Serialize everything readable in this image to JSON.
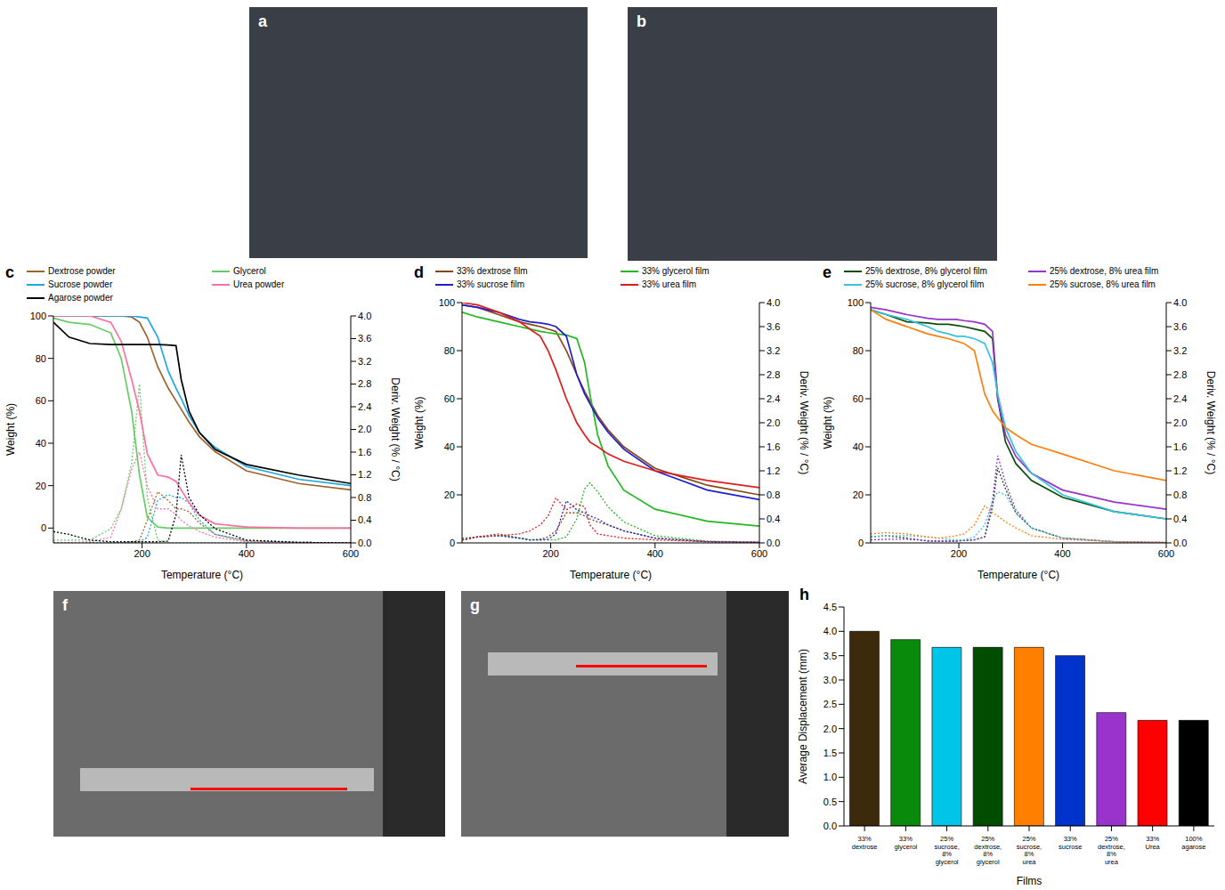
{
  "chart_data": [
    {
      "type": "image",
      "panel": "a"
    },
    {
      "type": "image",
      "panel": "b"
    },
    {
      "type": "line",
      "panel": "c",
      "legend": "top",
      "xlabel": "Temperature (°C)",
      "ylabel": "Weight (%)",
      "y2label": "Deriv. Weight (% / °C)",
      "x": [
        30,
        60,
        100,
        140,
        160,
        180,
        195,
        210,
        230,
        250,
        265,
        275,
        290,
        310,
        340,
        400,
        500,
        600
      ],
      "xlim": [
        30,
        600
      ],
      "xticks": [
        200,
        400,
        600
      ],
      "ylim": [
        -7,
        100
      ],
      "yticks": [
        0,
        20,
        40,
        60,
        80,
        100
      ],
      "y2lim": [
        0,
        4
      ],
      "y2ticks": [
        {
          "value": 0,
          "label": "0.0"
        },
        0.4,
        0.8,
        1.2,
        1.6,
        {
          "value": 2,
          "label": "2.0"
        },
        2.4,
        2.8,
        3.2,
        3.6,
        {
          "value": 4,
          "label": "4.0"
        }
      ],
      "series": [
        {
          "name": "Dextrose powder",
          "color": "#a0622d",
          "line_style": "solid",
          "values": [
            100,
            100,
            100,
            100,
            100,
            99.5,
            97,
            90,
            76,
            66,
            60,
            56,
            50,
            43,
            36,
            27,
            21,
            18
          ]
        },
        {
          "color": "#a0622d",
          "axis": "y2",
          "line_style": "dotted",
          "values": [
            0,
            0,
            0,
            0,
            0,
            0.02,
            0.05,
            0.4,
            0.9,
            0.75,
            0.6,
            0.6,
            0.55,
            0.35,
            0.15,
            0.04,
            0.01,
            0
          ]
        },
        {
          "name": "Glycerol",
          "color": "#66cc66",
          "line_style": "solid",
          "values": [
            99,
            97,
            96,
            92,
            80,
            55,
            25,
            5,
            0.5,
            0,
            0,
            0,
            0,
            0,
            0,
            0,
            0,
            0
          ]
        },
        {
          "color": "#66cc66",
          "axis": "y2",
          "line_style": "dotted",
          "values": [
            0.05,
            0.05,
            0.05,
            0.25,
            0.6,
            1.4,
            2.8,
            0.8,
            0.05,
            0,
            0,
            0,
            0,
            0,
            0,
            0,
            0,
            0
          ]
        },
        {
          "name": "Sucrose powder",
          "color": "#1ea7e8",
          "line_style": "solid",
          "values": [
            100,
            100,
            100,
            100,
            100,
            100,
            99.5,
            99,
            90,
            74,
            66,
            61,
            53,
            45,
            38,
            29,
            23,
            20
          ]
        },
        {
          "color": "#1ea7e8",
          "axis": "y2",
          "line_style": "dotted",
          "values": [
            0,
            0,
            0,
            0,
            0,
            0,
            0.02,
            0.1,
            0.75,
            0.85,
            0.8,
            0.8,
            0.7,
            0.4,
            0.15,
            0.03,
            0.01,
            0
          ]
        },
        {
          "name": "Urea powder",
          "color": "#ff6fa0",
          "line_style": "solid",
          "values": [
            100,
            100,
            100,
            97,
            88,
            70,
            55,
            35,
            25,
            24,
            22,
            18,
            12,
            6,
            2,
            0.5,
            0,
            0
          ]
        },
        {
          "color": "#ff6fa0",
          "axis": "y2",
          "line_style": "dotted",
          "values": [
            0,
            0,
            0.02,
            0.1,
            0.6,
            1.3,
            1.6,
            1,
            0.6,
            0.6,
            0.5,
            0.4,
            0.3,
            0.2,
            0.1,
            0.02,
            0,
            0
          ]
        },
        {
          "name": "Agarose powder",
          "color": "#000000",
          "line_style": "solid",
          "values": [
            97,
            90,
            87,
            86.5,
            86.5,
            86.5,
            86.5,
            86.5,
            86.5,
            86.3,
            86,
            70,
            55,
            45,
            37,
            30,
            25,
            21
          ]
        },
        {
          "color": "#000000",
          "axis": "y2",
          "line_style": "dotted",
          "values": [
            0.2,
            0.15,
            0.05,
            0.02,
            0.02,
            0.02,
            0.02,
            0.02,
            0.02,
            0.03,
            0.5,
            1.55,
            0.8,
            0.5,
            0.25,
            0.05,
            0.01,
            0
          ]
        }
      ]
    },
    {
      "type": "line",
      "panel": "d",
      "legend": "top",
      "xlabel": "Temperature (°C)",
      "ylabel": "Weight (%)",
      "y2label": "Deriv. Weight (% / °C)",
      "x": [
        30,
        60,
        100,
        140,
        160,
        180,
        195,
        210,
        230,
        250,
        265,
        275,
        290,
        310,
        340,
        400,
        500,
        600
      ],
      "xlim": [
        30,
        600
      ],
      "xticks": [
        200,
        400,
        600
      ],
      "ylim": [
        0,
        100
      ],
      "yticks": [
        0,
        20,
        40,
        60,
        80,
        100
      ],
      "y2lim": [
        0,
        4
      ],
      "y2ticks": [
        {
          "value": 0,
          "label": "0.0"
        },
        0.4,
        0.8,
        1.2,
        1.6,
        {
          "value": 2,
          "label": "2.0"
        },
        2.4,
        2.8,
        3.2,
        3.6,
        {
          "value": 4,
          "label": "4.0"
        }
      ],
      "series": [
        {
          "name": "33% dextrose film",
          "color": "#8b4513",
          "line_style": "solid",
          "values": [
            99,
            98,
            95,
            92,
            91,
            90,
            89,
            88,
            80,
            70,
            63,
            59,
            53,
            47,
            40,
            31,
            24,
            20
          ]
        },
        {
          "color": "#8b4513",
          "axis": "y2",
          "line_style": "dotted",
          "values": [
            0.05,
            0.1,
            0.15,
            0.08,
            0.05,
            0.06,
            0.1,
            0.2,
            0.5,
            0.5,
            0.45,
            0.4,
            0.35,
            0.3,
            0.2,
            0.08,
            0.02,
            0.01
          ]
        },
        {
          "name": "33% glycerol film",
          "color": "#22b822",
          "line_style": "solid",
          "values": [
            96,
            94,
            92,
            90,
            89,
            88,
            87.5,
            87,
            86.5,
            85,
            75,
            62,
            45,
            32,
            22,
            14,
            9,
            7
          ]
        },
        {
          "color": "#22b822",
          "axis": "y2",
          "line_style": "dotted",
          "values": [
            0.08,
            0.1,
            0.12,
            0.08,
            0.05,
            0.05,
            0.05,
            0.05,
            0.1,
            0.4,
            0.9,
            1,
            0.85,
            0.6,
            0.35,
            0.12,
            0.03,
            0.01
          ]
        },
        {
          "name": "33% sucrose film",
          "color": "#1f1fd0",
          "line_style": "solid",
          "values": [
            99,
            98,
            96,
            93,
            92,
            91.5,
            91,
            90,
            86,
            70,
            62,
            58,
            52,
            46,
            39,
            30,
            22,
            18
          ]
        },
        {
          "color": "#1f1fd0",
          "axis": "y2",
          "line_style": "dotted",
          "values": [
            0.05,
            0.1,
            0.12,
            0.08,
            0.05,
            0.05,
            0.06,
            0.15,
            0.7,
            0.55,
            0.5,
            0.45,
            0.4,
            0.3,
            0.2,
            0.08,
            0.02,
            0.01
          ]
        },
        {
          "name": "33% urea film",
          "color": "#e31a1c",
          "line_style": "solid",
          "values": [
            100,
            99,
            96,
            92,
            89,
            86,
            80,
            72,
            60,
            50,
            45,
            42,
            40,
            37,
            34,
            30,
            26,
            23
          ]
        },
        {
          "color": "#e31a1c",
          "axis": "y2",
          "line_style": "dotted",
          "values": [
            0.05,
            0.1,
            0.12,
            0.15,
            0.2,
            0.3,
            0.45,
            0.75,
            0.55,
            0.65,
            0.6,
            0.3,
            0.15,
            0.12,
            0.08,
            0.05,
            0.02,
            0.01
          ]
        }
      ]
    },
    {
      "type": "line",
      "panel": "e",
      "legend": "top",
      "xlabel": "Temperature (°C)",
      "ylabel": "Weight (%)",
      "y2label": "Deriv. Weight (% / °C)",
      "x": [
        30,
        60,
        100,
        140,
        160,
        180,
        195,
        210,
        230,
        250,
        265,
        275,
        290,
        310,
        340,
        400,
        500,
        600
      ],
      "xlim": [
        30,
        600
      ],
      "xticks": [
        200,
        400,
        600
      ],
      "ylim": [
        0,
        100
      ],
      "yticks": [
        0,
        20,
        40,
        60,
        80,
        100
      ],
      "y2lim": [
        0,
        4
      ],
      "y2ticks": [
        {
          "value": 0,
          "label": "0.0"
        },
        0.4,
        0.8,
        1.2,
        1.6,
        {
          "value": 2,
          "label": "2.0"
        },
        2.4,
        2.8,
        3.2,
        3.6,
        {
          "value": 4,
          "label": "4.0"
        }
      ],
      "series": [
        {
          "name": "25% dextrose, 8% glycerol film",
          "color": "#0b4d0b",
          "line_style": "solid",
          "values": [
            97,
            95,
            92,
            91.5,
            91,
            91,
            90.5,
            90,
            89,
            88,
            85,
            60,
            42,
            33,
            26,
            19,
            13,
            10
          ]
        },
        {
          "color": "#0b4d0b",
          "axis": "y2",
          "line_style": "dotted",
          "values": [
            0.1,
            0.12,
            0.08,
            0.03,
            0.03,
            0.03,
            0.03,
            0.04,
            0.05,
            0.1,
            0.6,
            1.25,
            0.9,
            0.5,
            0.25,
            0.08,
            0.02,
            0
          ]
        },
        {
          "name": "25% dextrose, 8% urea film",
          "color": "#9933cc",
          "line_style": "solid",
          "values": [
            98,
            97,
            95,
            93.5,
            93,
            93,
            93,
            92.5,
            92,
            91,
            88,
            60,
            45,
            36,
            29,
            22,
            17,
            14
          ]
        },
        {
          "color": "#9933cc",
          "axis": "y2",
          "line_style": "dotted",
          "values": [
            0.05,
            0.06,
            0.06,
            0.04,
            0.03,
            0.03,
            0.03,
            0.04,
            0.05,
            0.1,
            0.7,
            1.45,
            1,
            0.55,
            0.25,
            0.08,
            0.02,
            0.01
          ]
        },
        {
          "name": "25% sucrose, 8% glycerol film",
          "color": "#33c4e0",
          "line_style": "solid",
          "values": [
            97,
            95,
            93,
            90,
            88,
            87,
            86,
            86,
            85,
            83,
            75,
            62,
            48,
            38,
            29,
            20,
            13,
            10
          ]
        },
        {
          "color": "#33c4e0",
          "axis": "y2",
          "line_style": "dotted",
          "values": [
            0.1,
            0.12,
            0.12,
            0.1,
            0.08,
            0.06,
            0.05,
            0.05,
            0.1,
            0.3,
            0.7,
            0.85,
            0.8,
            0.5,
            0.25,
            0.08,
            0.02,
            0
          ]
        },
        {
          "name": "25% sucrose, 8% urea film",
          "color": "#ff7f0e",
          "line_style": "solid",
          "values": [
            97,
            93,
            90,
            87,
            86,
            85,
            84,
            83,
            80,
            62,
            55,
            52,
            48,
            45,
            41,
            37,
            30,
            26
          ]
        },
        {
          "color": "#ff7f0e",
          "axis": "y2",
          "line_style": "dotted",
          "values": [
            0.15,
            0.17,
            0.15,
            0.1,
            0.08,
            0.1,
            0.12,
            0.15,
            0.3,
            0.62,
            0.5,
            0.45,
            0.35,
            0.25,
            0.12,
            0.06,
            0.02,
            0.01
          ]
        }
      ]
    },
    {
      "type": "image",
      "panel": "f"
    },
    {
      "type": "image",
      "panel": "g"
    },
    {
      "type": "bar",
      "panel": "h",
      "xlabel": "Films",
      "ylabel": "Average Displacement (mm)",
      "categories": [
        "33% dextrose",
        "33% glycerol",
        "25% sucrose, 8% glycerol",
        "25% dextrose, 8% glycerol",
        "25% sucrose, 8% urea",
        "33% sucrose",
        "25% dextrose, 8% urea",
        "33% Urea",
        "100% agarose"
      ],
      "values": [
        4.0,
        3.83,
        3.67,
        3.67,
        3.67,
        3.5,
        2.33,
        2.17,
        2.17
      ],
      "colors": [
        "#3d2a0d",
        "#0a8a0a",
        "#00c4e8",
        "#004d00",
        "#ff8000",
        "#0033cc",
        "#9933cc",
        "#ff0000",
        "#000000"
      ],
      "ylim": [
        0,
        4.5
      ],
      "yticks": [
        {
          "value": 0,
          "label": "0.0"
        },
        0.5,
        {
          "value": 1,
          "label": "1.0"
        },
        1.5,
        {
          "value": 2,
          "label": "2.0"
        },
        2.5,
        {
          "value": 3,
          "label": "3.0"
        },
        3.5,
        {
          "value": 4,
          "label": "4.0"
        },
        4.5
      ]
    }
  ]
}
